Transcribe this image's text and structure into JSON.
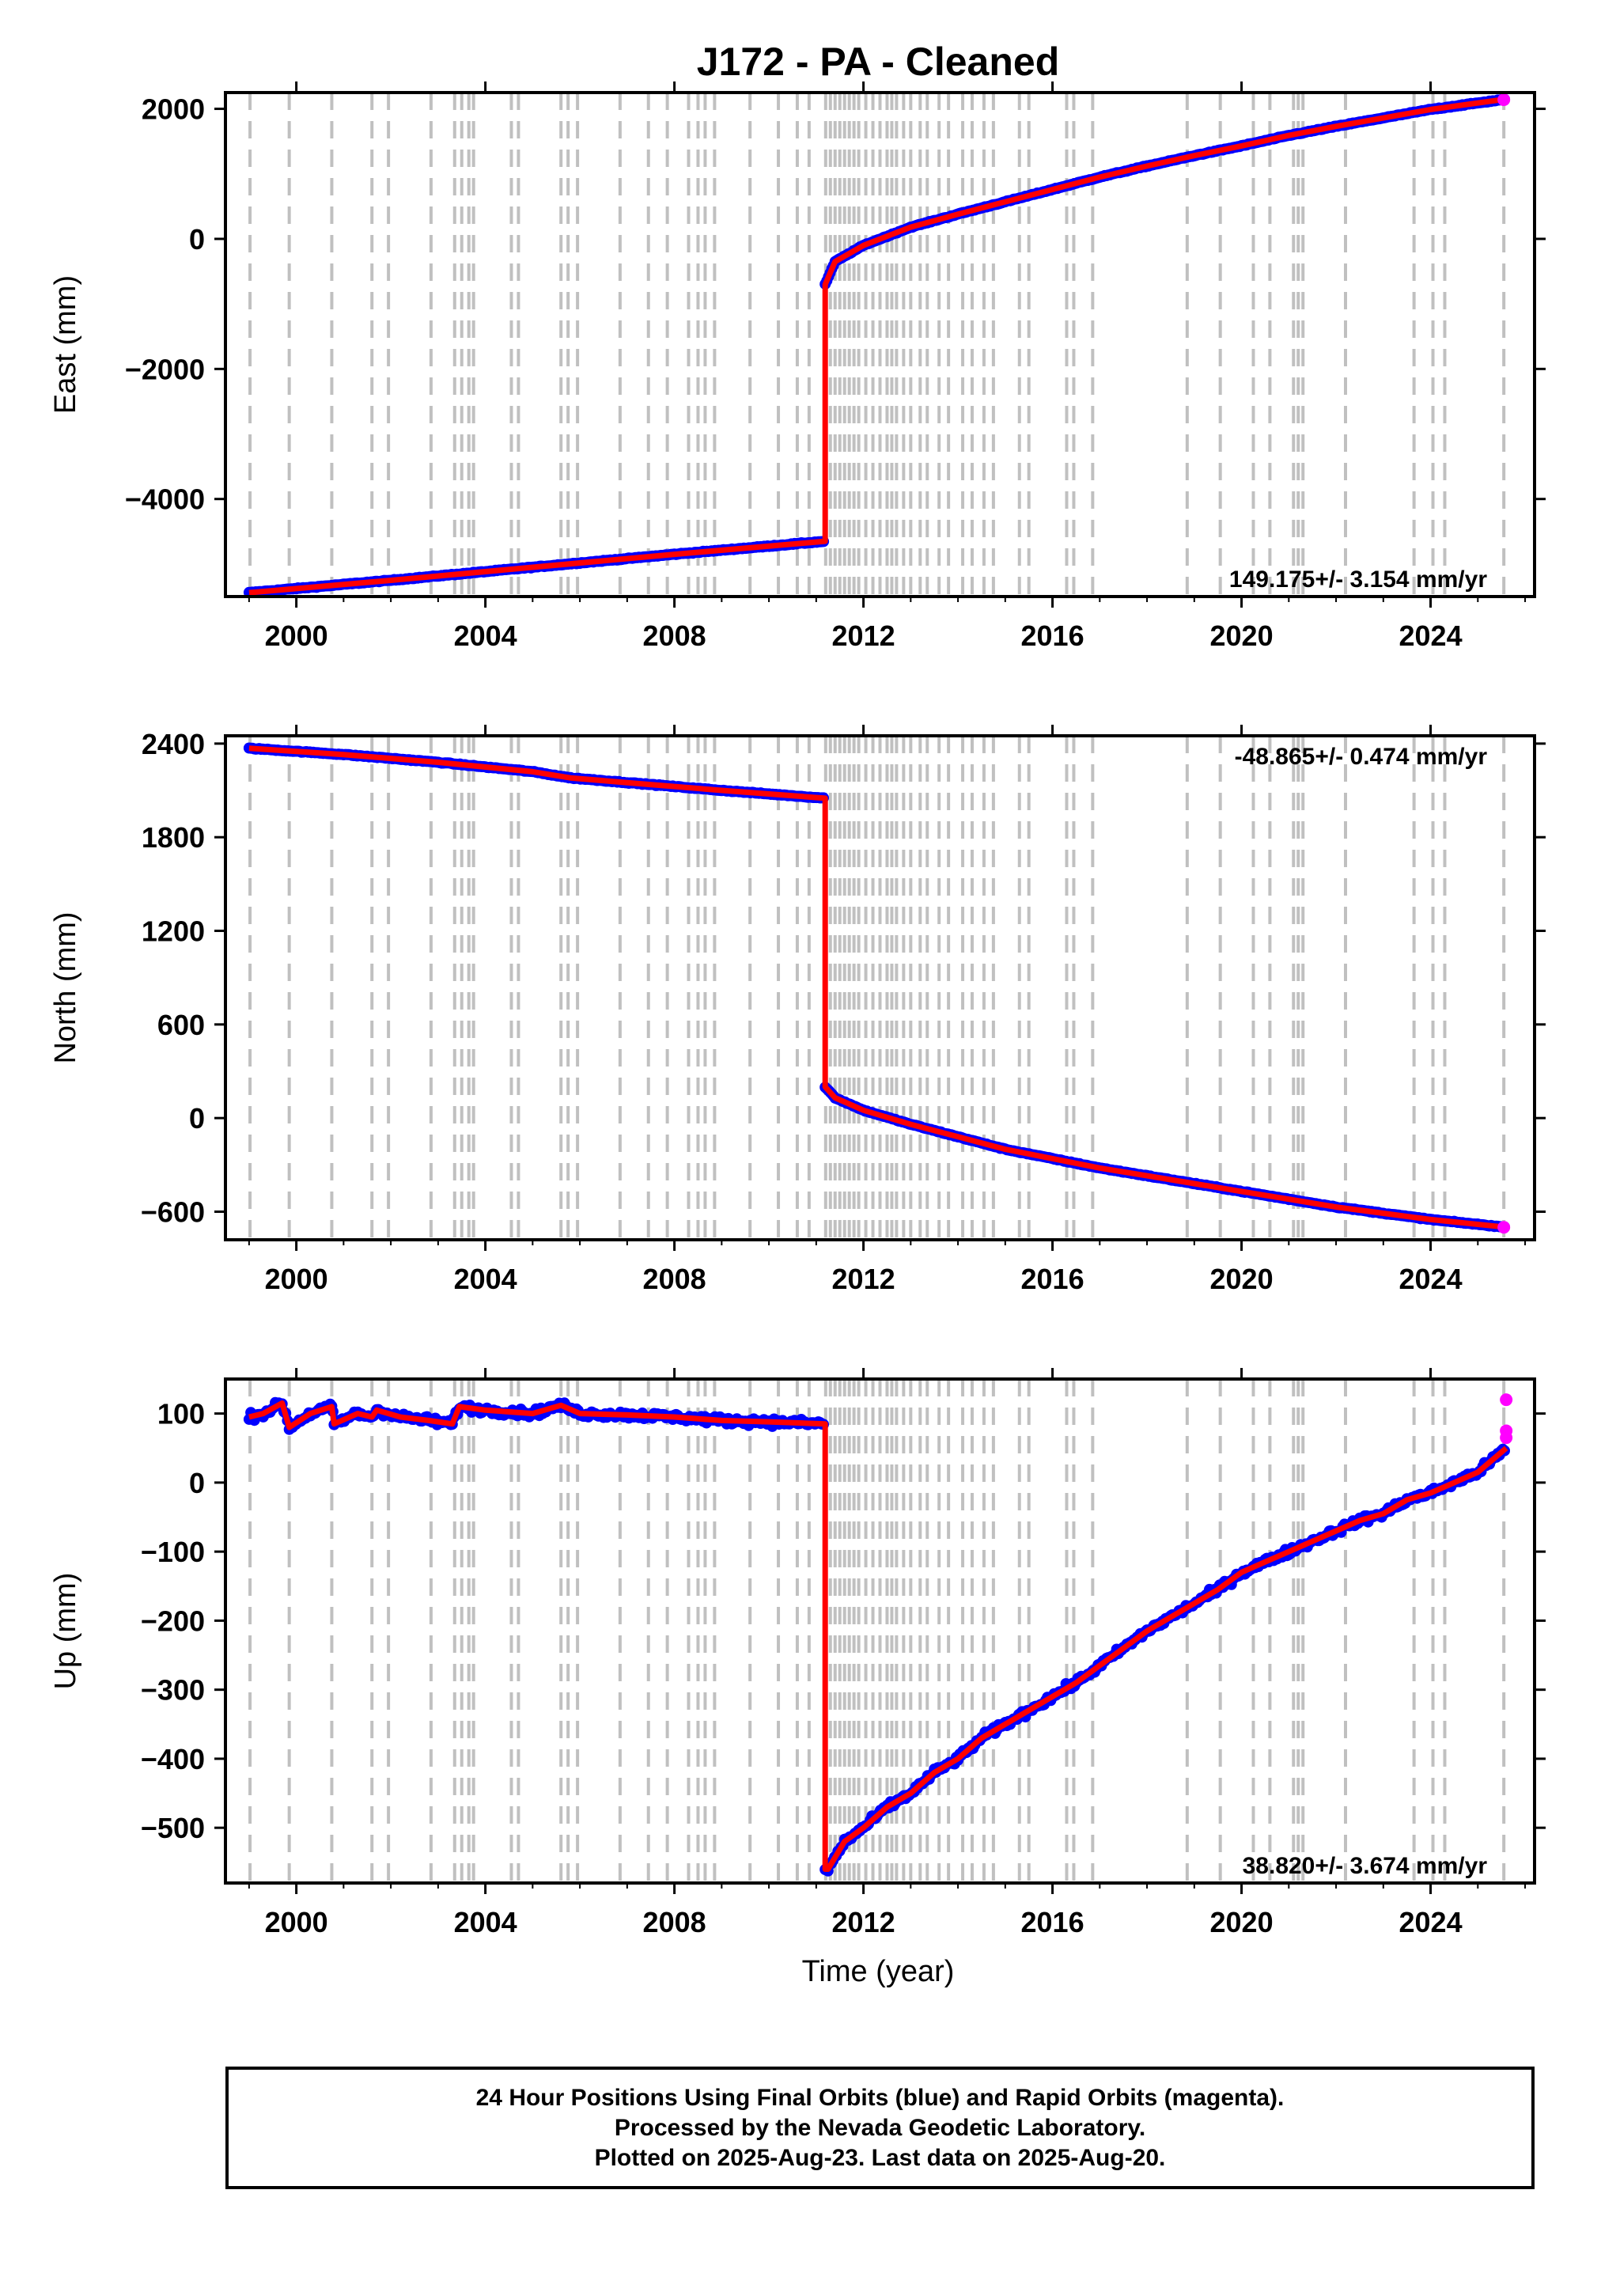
{
  "title": "J172  - PA - Cleaned",
  "xlabel": "Time (year)",
  "footer": {
    "line1": "24 Hour Positions Using Final Orbits (blue) and Rapid Orbits (magenta).",
    "line2": "Processed by the Nevada Geodetic Laboratory.",
    "line3": "Plotted on 2025-Aug-23. Last data on 2025-Aug-20."
  },
  "colors": {
    "final_orbits": "#0000ff",
    "rapid_orbits": "#ff00ff",
    "model": "#ff0000",
    "event_lines": "#c0c0c0"
  },
  "chart_data": [
    {
      "type": "scatter",
      "name": "east",
      "ylabel": "East (mm)",
      "rate": "149.175+/- 3.154 mm/yr",
      "rate_position": "bottom-right",
      "xlim": [
        1998.5,
        2026.2
      ],
      "ylim": [
        -5500,
        2250
      ],
      "xticks": [
        2000,
        2004,
        2008,
        2012,
        2016,
        2020,
        2024
      ],
      "yticks": [
        -4000,
        -2000,
        0,
        2000
      ],
      "ytick_labels": [
        "−4000",
        "−2000",
        "0",
        "2000"
      ],
      "offset_at": 2011.19,
      "segments": [
        {
          "x": [
            1999.0,
            2002.0,
            2005.0,
            2008.0,
            2011.19
          ],
          "y": [
            -5440,
            -5250,
            -5050,
            -4850,
            -4650
          ]
        },
        {
          "x": [
            2011.19,
            2011.4,
            2012.0,
            2013.0,
            2014.0,
            2015.0,
            2016.0,
            2017.0,
            2018.0,
            2019.0,
            2020.0,
            2021.0,
            2022.0,
            2023.0,
            2024.0,
            2025.6
          ],
          "y": [
            -700,
            -350,
            -100,
            180,
            380,
            570,
            760,
            950,
            1120,
            1280,
            1430,
            1590,
            1730,
            1860,
            1990,
            2150
          ]
        }
      ],
      "rapid_points": [
        [
          2025.55,
          2140
        ]
      ]
    },
    {
      "type": "scatter",
      "name": "north",
      "ylabel": "North (mm)",
      "rate": "-48.865+/- 0.474 mm/yr",
      "rate_position": "top-right",
      "xlim": [
        1998.5,
        2026.2
      ],
      "ylim": [
        -780,
        2450
      ],
      "xticks": [
        2000,
        2004,
        2008,
        2012,
        2016,
        2020,
        2024
      ],
      "yticks": [
        -600,
        0,
        600,
        1200,
        1800,
        2400
      ],
      "ytick_labels": [
        "−600",
        "0",
        "600",
        "1200",
        "1800",
        "2400"
      ],
      "offset_at": 2011.19,
      "segments": [
        {
          "x": [
            1999.0,
            2001.0,
            2003.0,
            2005.0,
            2005.8,
            2007.0,
            2009.0,
            2011.19
          ],
          "y": [
            2370,
            2330,
            2280,
            2220,
            2180,
            2150,
            2100,
            2050
          ]
        },
        {
          "x": [
            2011.19,
            2011.4,
            2012.0,
            2013.0,
            2014.0,
            2015.0,
            2016.0,
            2017.0,
            2018.0,
            2019.0,
            2020.0,
            2021.0,
            2022.0,
            2023.0,
            2024.0,
            2025.6
          ],
          "y": [
            200,
            130,
            50,
            -40,
            -120,
            -200,
            -260,
            -320,
            -370,
            -420,
            -470,
            -520,
            -570,
            -610,
            -650,
            -700
          ]
        }
      ],
      "rapid_points": [
        [
          2025.55,
          -700
        ]
      ]
    },
    {
      "type": "scatter",
      "name": "up",
      "ylabel": "Up (mm)",
      "rate": "38.820+/- 3.674 mm/yr",
      "rate_position": "bottom-right",
      "xlim": [
        1998.5,
        2026.2
      ],
      "ylim": [
        -580,
        150
      ],
      "xticks": [
        2000,
        2004,
        2008,
        2012,
        2016,
        2020,
        2024
      ],
      "yticks": [
        -500,
        -400,
        -300,
        -200,
        -100,
        0,
        100
      ],
      "ytick_labels": [
        "−500",
        "−400",
        "−300",
        "−200",
        "−100",
        "0",
        "100"
      ],
      "offset_at": 2011.19,
      "segments": [
        {
          "x": [
            1999.0,
            1999.3,
            1999.7,
            1999.85,
            2000.3,
            2000.75,
            2000.8,
            2001.3,
            2001.6,
            2001.7,
            2002.2,
            2002.8,
            2003.3,
            2003.45,
            2004.0,
            2005.0,
            2005.6,
            2006.0,
            2007.0,
            2008.0,
            2009.0,
            2010.0,
            2011.19
          ],
          "y": [
            95,
            100,
            115,
            80,
            100,
            110,
            85,
            100,
            95,
            105,
            95,
            90,
            85,
            110,
            105,
            100,
            112,
            100,
            98,
            95,
            90,
            88,
            85
          ]
        },
        {
          "x": [
            2011.19,
            2011.25,
            2011.6,
            2012.0,
            2012.5,
            2013.0,
            2013.5,
            2014.0,
            2014.5,
            2015.0,
            2015.5,
            2016.0,
            2016.5,
            2017.0,
            2017.5,
            2018.0,
            2018.5,
            2019.0,
            2019.5,
            2020.0,
            2020.5,
            2021.0,
            2021.5,
            2022.0,
            2022.5,
            2023.0,
            2023.5,
            2024.0,
            2024.5,
            2025.0,
            2025.6
          ],
          "y": [
            -560,
            -560,
            -520,
            -500,
            -470,
            -450,
            -420,
            -400,
            -370,
            -350,
            -330,
            -310,
            -290,
            -265,
            -240,
            -215,
            -195,
            -175,
            -155,
            -130,
            -115,
            -100,
            -85,
            -70,
            -55,
            -45,
            -25,
            -15,
            0,
            15,
            50
          ]
        }
      ],
      "rapid_points": [
        [
          2025.6,
          120
        ],
        [
          2025.6,
          75
        ],
        [
          2025.6,
          65
        ]
      ]
    }
  ],
  "event_years": [
    1999.02,
    1999.85,
    2000.75,
    2001.6,
    2001.95,
    2002.85,
    2003.35,
    2003.5,
    2003.65,
    2003.75,
    2004.55,
    2004.7,
    2005.6,
    2005.75,
    2005.95,
    2006.85,
    2007.45,
    2007.85,
    2008.3,
    2008.5,
    2008.65,
    2008.85,
    2009.6,
    2010.2,
    2010.6,
    2010.85,
    2011.2,
    2011.3,
    2011.4,
    2011.5,
    2011.6,
    2011.7,
    2011.8,
    2011.9,
    2012.05,
    2012.2,
    2012.35,
    2012.5,
    2012.6,
    2012.7,
    2012.85,
    2013.0,
    2013.2,
    2013.35,
    2013.6,
    2013.8,
    2014.1,
    2014.3,
    2014.55,
    2014.75,
    2015.3,
    2015.5,
    2016.3,
    2016.45,
    2016.85,
    2018.85,
    2019.55,
    2020.25,
    2020.6,
    2021.1,
    2021.2,
    2021.3,
    2022.2,
    2023.65,
    2024.05,
    2024.3,
    2025.55
  ]
}
